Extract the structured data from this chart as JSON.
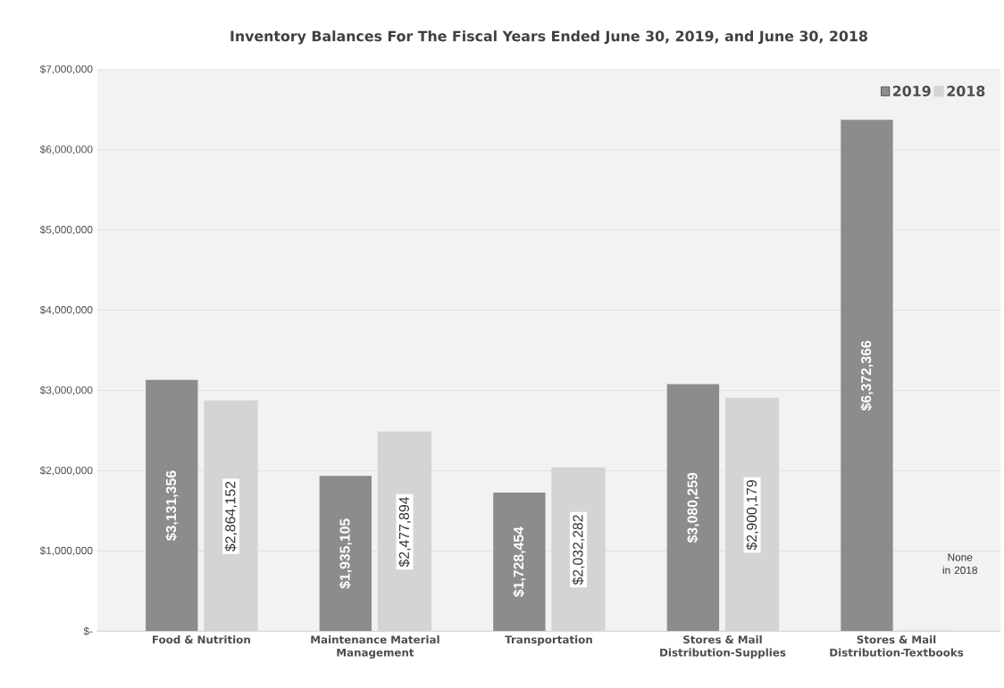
{
  "chart_data": {
    "type": "bar",
    "title": "Inventory Balances For The Fiscal Years Ended June 30, 2019, and June 30, 2018",
    "categories": [
      "Food & Nutrition",
      "Maintenance Material Management",
      "Transportation",
      "Stores & Mail Distribution-Supplies",
      "Stores & Mail Distribution-Textbooks"
    ],
    "series": [
      {
        "name": "2019",
        "color": "#8c8c8c",
        "values": [
          3131356,
          1935105,
          1728454,
          3080259,
          6372366
        ],
        "value_labels": [
          "$3,131,356",
          "$1,935,105",
          "$1,728,454",
          "$3,080,259",
          "$6,372,366"
        ]
      },
      {
        "name": "2018",
        "color": "#d4d4d4",
        "values": [
          2864152,
          2477894,
          2032282,
          2900179,
          0
        ],
        "value_labels": [
          "$2,864,152",
          "$2,477,894",
          "$2,032,282",
          "$2,900,179",
          null
        ]
      }
    ],
    "ylim": [
      0,
      7000000
    ],
    "yticks": [
      {
        "value": 0,
        "label": "$-"
      },
      {
        "value": 1000000,
        "label": "$1,000,000"
      },
      {
        "value": 2000000,
        "label": "$2,000,000"
      },
      {
        "value": 3000000,
        "label": "$3,000,000"
      },
      {
        "value": 4000000,
        "label": "$4,000,000"
      },
      {
        "value": 5000000,
        "label": "$5,000,000"
      },
      {
        "value": 6000000,
        "label": "$6,000,000"
      },
      {
        "value": 7000000,
        "label": "$7,000,000"
      }
    ],
    "grid": "y",
    "legend": "top right",
    "annotations": [
      "None in 2018"
    ]
  }
}
